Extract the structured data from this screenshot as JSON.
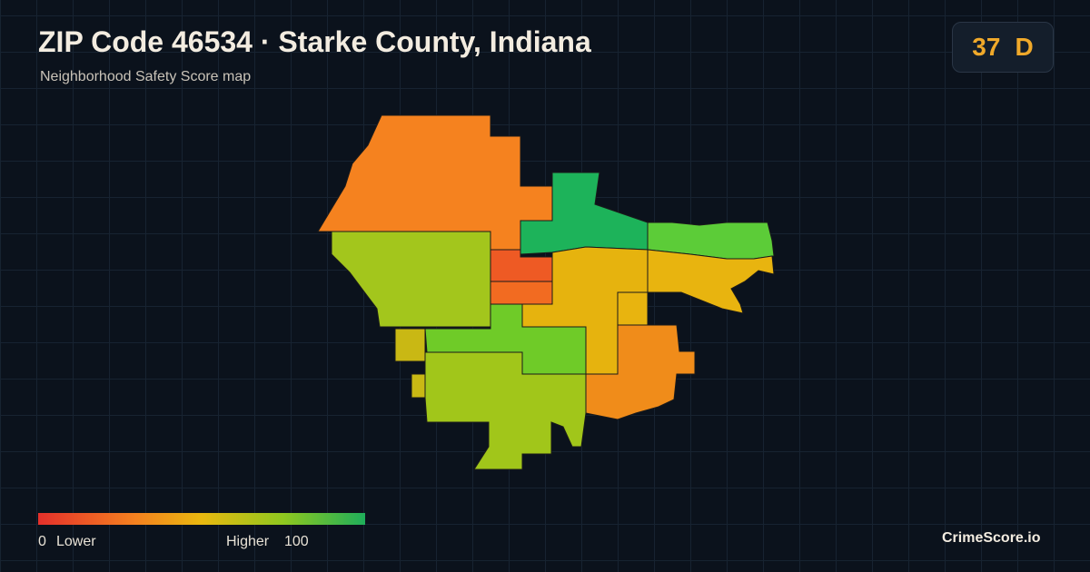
{
  "header": {
    "title": "ZIP Code 46534 · Starke County, Indiana",
    "subtitle": "Neighborhood Safety Score map"
  },
  "score": {
    "value": "37",
    "grade": "D"
  },
  "legend": {
    "min": "0",
    "min_label": "Lower",
    "max_label": "Higher",
    "max": "100"
  },
  "brand": "CrimeScore.io"
}
